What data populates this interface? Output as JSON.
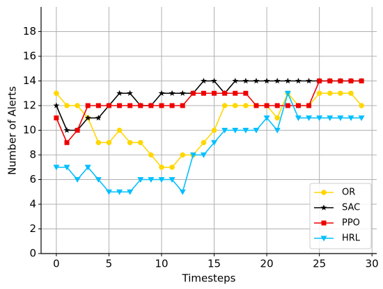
{
  "chart_data": {
    "type": "line",
    "xlabel": "Timesteps",
    "ylabel": "Number of Alerts",
    "x": [
      0,
      1,
      2,
      3,
      4,
      5,
      6,
      7,
      8,
      9,
      10,
      11,
      12,
      13,
      14,
      15,
      16,
      17,
      18,
      19,
      20,
      21,
      22,
      23,
      24,
      25,
      26,
      27,
      28,
      29
    ],
    "series": [
      {
        "name": "OR",
        "color": "#ffd700",
        "marker": "circle",
        "values": [
          13,
          12,
          12,
          11,
          9,
          9,
          10,
          9,
          9,
          8,
          7,
          7,
          8,
          8,
          9,
          10,
          12,
          12,
          12,
          12,
          12,
          11,
          13,
          12,
          12,
          13,
          13,
          13,
          13,
          12
        ]
      },
      {
        "name": "SAC",
        "color": "#000000",
        "marker": "star",
        "values": [
          12,
          10,
          10,
          11,
          11,
          12,
          13,
          13,
          12,
          12,
          13,
          13,
          13,
          13,
          14,
          14,
          13,
          14,
          14,
          14,
          14,
          14,
          14,
          14,
          14,
          14,
          14,
          14,
          14,
          14
        ]
      },
      {
        "name": "PPO",
        "color": "#ee0000",
        "marker": "square",
        "values": [
          11,
          9,
          10,
          12,
          12,
          12,
          12,
          12,
          12,
          12,
          12,
          12,
          12,
          13,
          13,
          13,
          13,
          13,
          13,
          12,
          12,
          12,
          12,
          12,
          12,
          14,
          14,
          14,
          14,
          14
        ]
      },
      {
        "name": "HRL",
        "color": "#00bfff",
        "marker": "triangle-down",
        "values": [
          7,
          7,
          6,
          7,
          6,
          5,
          5,
          5,
          6,
          6,
          6,
          6,
          5,
          8,
          8,
          9,
          10,
          10,
          10,
          10,
          11,
          10,
          13,
          11,
          11,
          11,
          11,
          11,
          11,
          11
        ]
      }
    ],
    "xlim": [
      -1.45,
      30.45
    ],
    "xticks": [
      0,
      5,
      10,
      15,
      20,
      25,
      30
    ],
    "ylim": [
      0,
      20
    ],
    "yticks": [
      0,
      2,
      4,
      6,
      8,
      10,
      12,
      14,
      16,
      18
    ],
    "grid": true,
    "legend": "lower right"
  }
}
